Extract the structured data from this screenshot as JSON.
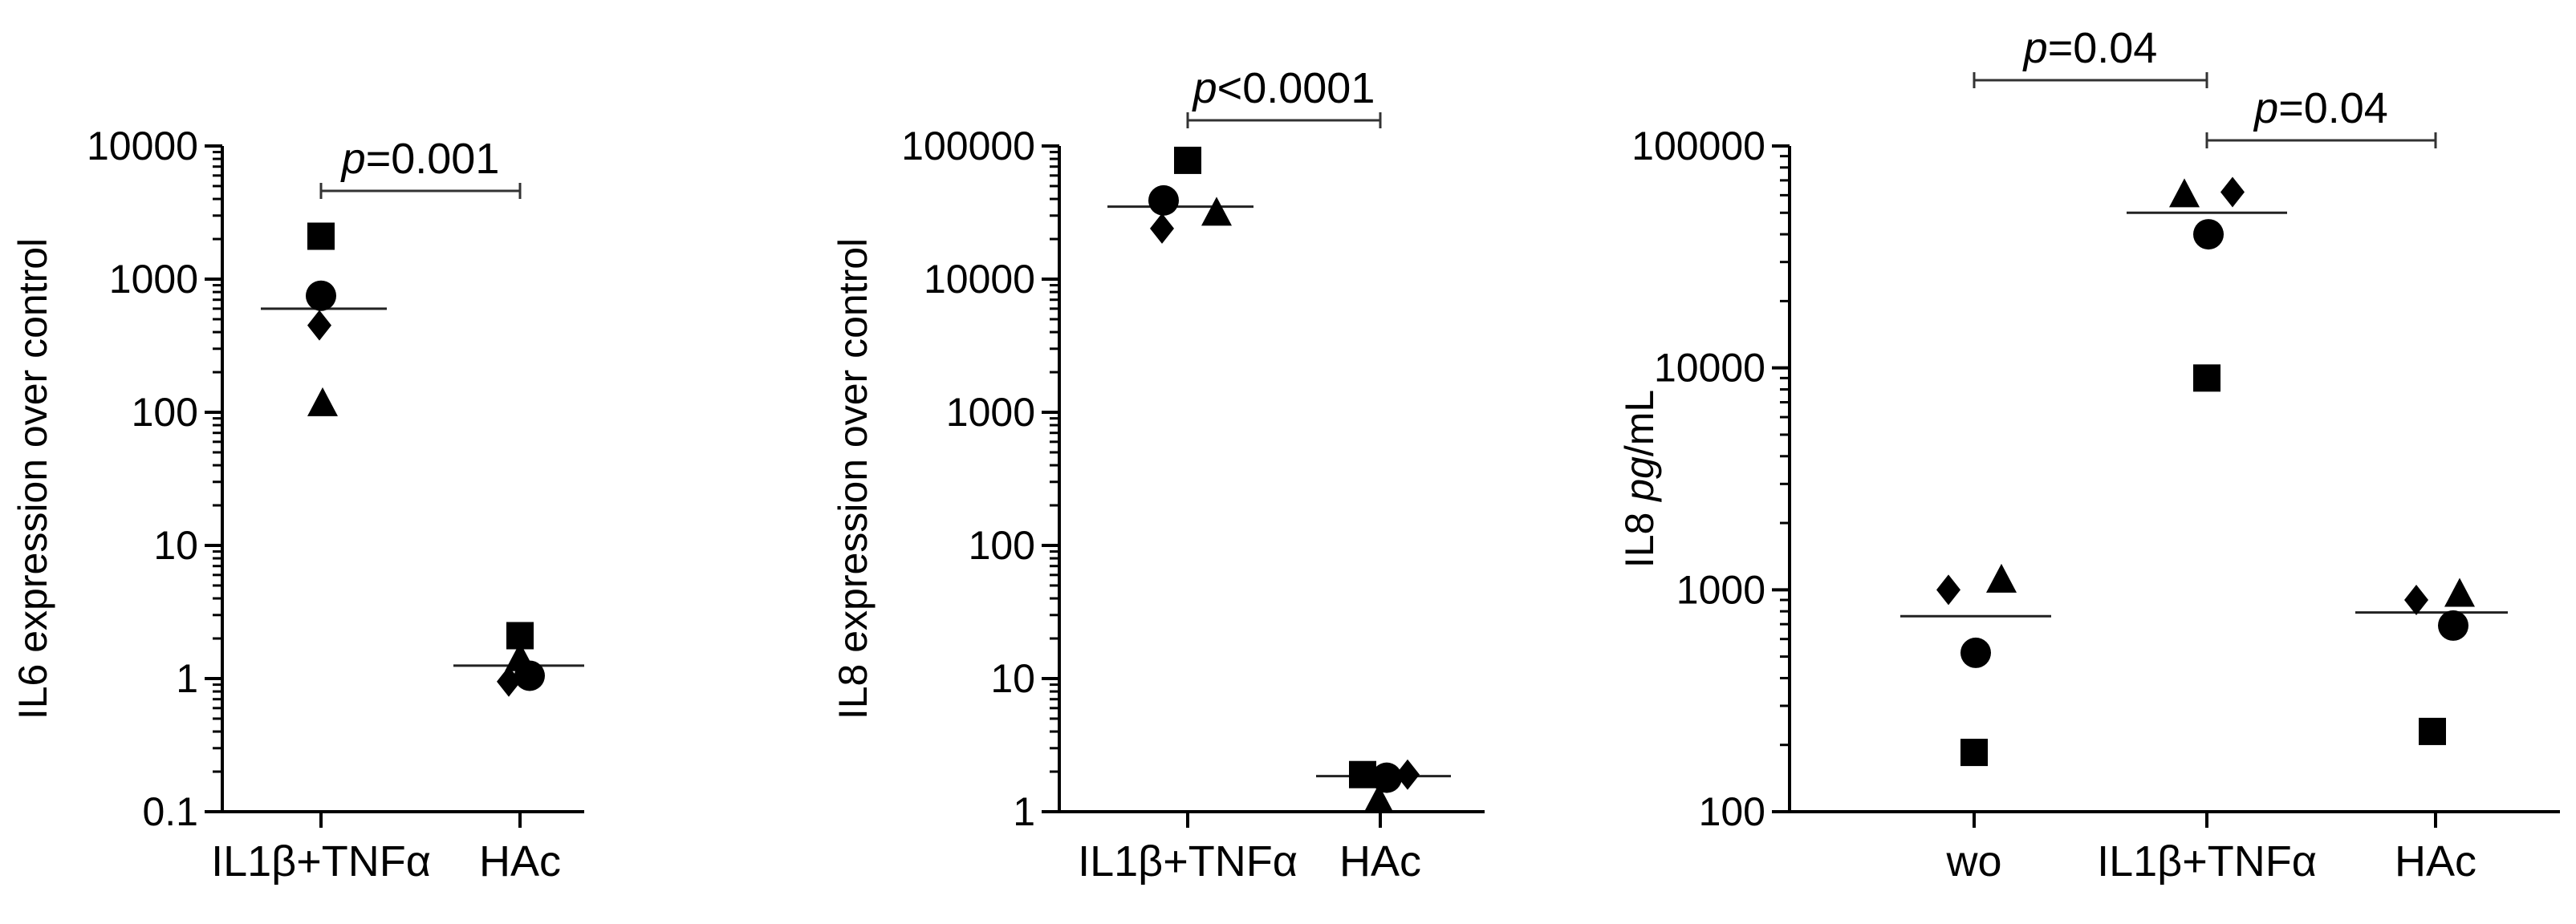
{
  "chart_data": [
    {
      "type": "scatter",
      "y_scale": "log",
      "ylabel": "IL6 expression over control",
      "ylim": [
        0.1,
        10000
      ],
      "y_ticks": [
        "0.1",
        "1",
        "10",
        "100",
        "1000",
        "10000"
      ],
      "categories": [
        "IL1β+TNFα",
        "HAc"
      ],
      "points": [
        {
          "category": "IL1β+TNFα",
          "marker": "square",
          "value": 2100
        },
        {
          "category": "IL1β+TNFα",
          "marker": "circle",
          "value": 750
        },
        {
          "category": "IL1β+TNFα",
          "marker": "diamond",
          "value": 450
        },
        {
          "category": "IL1β+TNFα",
          "marker": "triangle",
          "value": 115
        },
        {
          "category": "HAc",
          "marker": "square",
          "value": 2.1
        },
        {
          "category": "HAc",
          "marker": "triangle",
          "value": 1.4
        },
        {
          "category": "HAc",
          "marker": "circle",
          "value": 1.05
        },
        {
          "category": "HAc",
          "marker": "diamond",
          "value": 0.95
        }
      ],
      "means": [
        {
          "category": "IL1β+TNFα",
          "value": 600
        },
        {
          "category": "HAc",
          "value": 1.25
        }
      ],
      "comparisons": [
        {
          "from": "IL1β+TNFα",
          "to": "HAc",
          "p_prefix": "p",
          "p_value": "=0.001"
        }
      ]
    },
    {
      "type": "scatter",
      "y_scale": "log",
      "ylabel": "IL8 expression over control",
      "ylim": [
        1,
        100000
      ],
      "y_ticks": [
        "1",
        "10",
        "100",
        "1000",
        "10000",
        "100000"
      ],
      "categories": [
        "IL1β+TNFα",
        "HAc"
      ],
      "points": [
        {
          "category": "IL1β+TNFα",
          "marker": "square",
          "value": 78000
        },
        {
          "category": "IL1β+TNFα",
          "marker": "circle",
          "value": 39000
        },
        {
          "category": "IL1β+TNFα",
          "marker": "triangle",
          "value": 31000
        },
        {
          "category": "IL1β+TNFα",
          "marker": "diamond",
          "value": 24000
        },
        {
          "category": "HAc",
          "marker": "square",
          "value": 1.9
        },
        {
          "category": "HAc",
          "marker": "circle",
          "value": 1.8
        },
        {
          "category": "HAc",
          "marker": "diamond",
          "value": 1.9
        },
        {
          "category": "HAc",
          "marker": "triangle",
          "value": 1.2
        }
      ],
      "means": [
        {
          "category": "IL1β+TNFα",
          "value": 35000
        },
        {
          "category": "HAc",
          "value": 1.85
        }
      ],
      "comparisons": [
        {
          "from": "IL1β+TNFα",
          "to": "HAc",
          "p_prefix": "p",
          "p_value": "<0.0001"
        }
      ]
    },
    {
      "type": "scatter",
      "y_scale": "log",
      "ylabel_plain": "IL8 ",
      "ylabel_italic": "pg",
      "ylabel_rest": "/mL",
      "ylim": [
        100,
        100000
      ],
      "y_ticks": [
        "100",
        "1000",
        "10000",
        "100000"
      ],
      "categories": [
        "wo",
        "IL1β+TNFα",
        "HAc"
      ],
      "points": [
        {
          "category": "wo",
          "marker": "diamond",
          "value": 1000
        },
        {
          "category": "wo",
          "marker": "triangle",
          "value": 1100
        },
        {
          "category": "wo",
          "marker": "circle",
          "value": 520
        },
        {
          "category": "wo",
          "marker": "square",
          "value": 185
        },
        {
          "category": "IL1β+TNFα",
          "marker": "triangle",
          "value": 60000
        },
        {
          "category": "IL1β+TNFα",
          "marker": "diamond",
          "value": 62000
        },
        {
          "category": "IL1β+TNFα",
          "marker": "circle",
          "value": 40000
        },
        {
          "category": "IL1β+TNFα",
          "marker": "square",
          "value": 9000
        },
        {
          "category": "HAc",
          "marker": "diamond",
          "value": 900
        },
        {
          "category": "HAc",
          "marker": "triangle",
          "value": 950
        },
        {
          "category": "HAc",
          "marker": "circle",
          "value": 690
        },
        {
          "category": "HAc",
          "marker": "square",
          "value": 230
        }
      ],
      "means": [
        {
          "category": "wo",
          "value": 760
        },
        {
          "category": "IL1β+TNFα",
          "value": 50000
        },
        {
          "category": "HAc",
          "value": 790
        }
      ],
      "comparisons": [
        {
          "from": "wo",
          "to": "IL1β+TNFα",
          "p_prefix": "p",
          "p_value": "=0.04"
        },
        {
          "from": "IL1β+TNFα",
          "to": "HAc",
          "p_prefix": "p",
          "p_value": "=0.04"
        }
      ]
    }
  ]
}
